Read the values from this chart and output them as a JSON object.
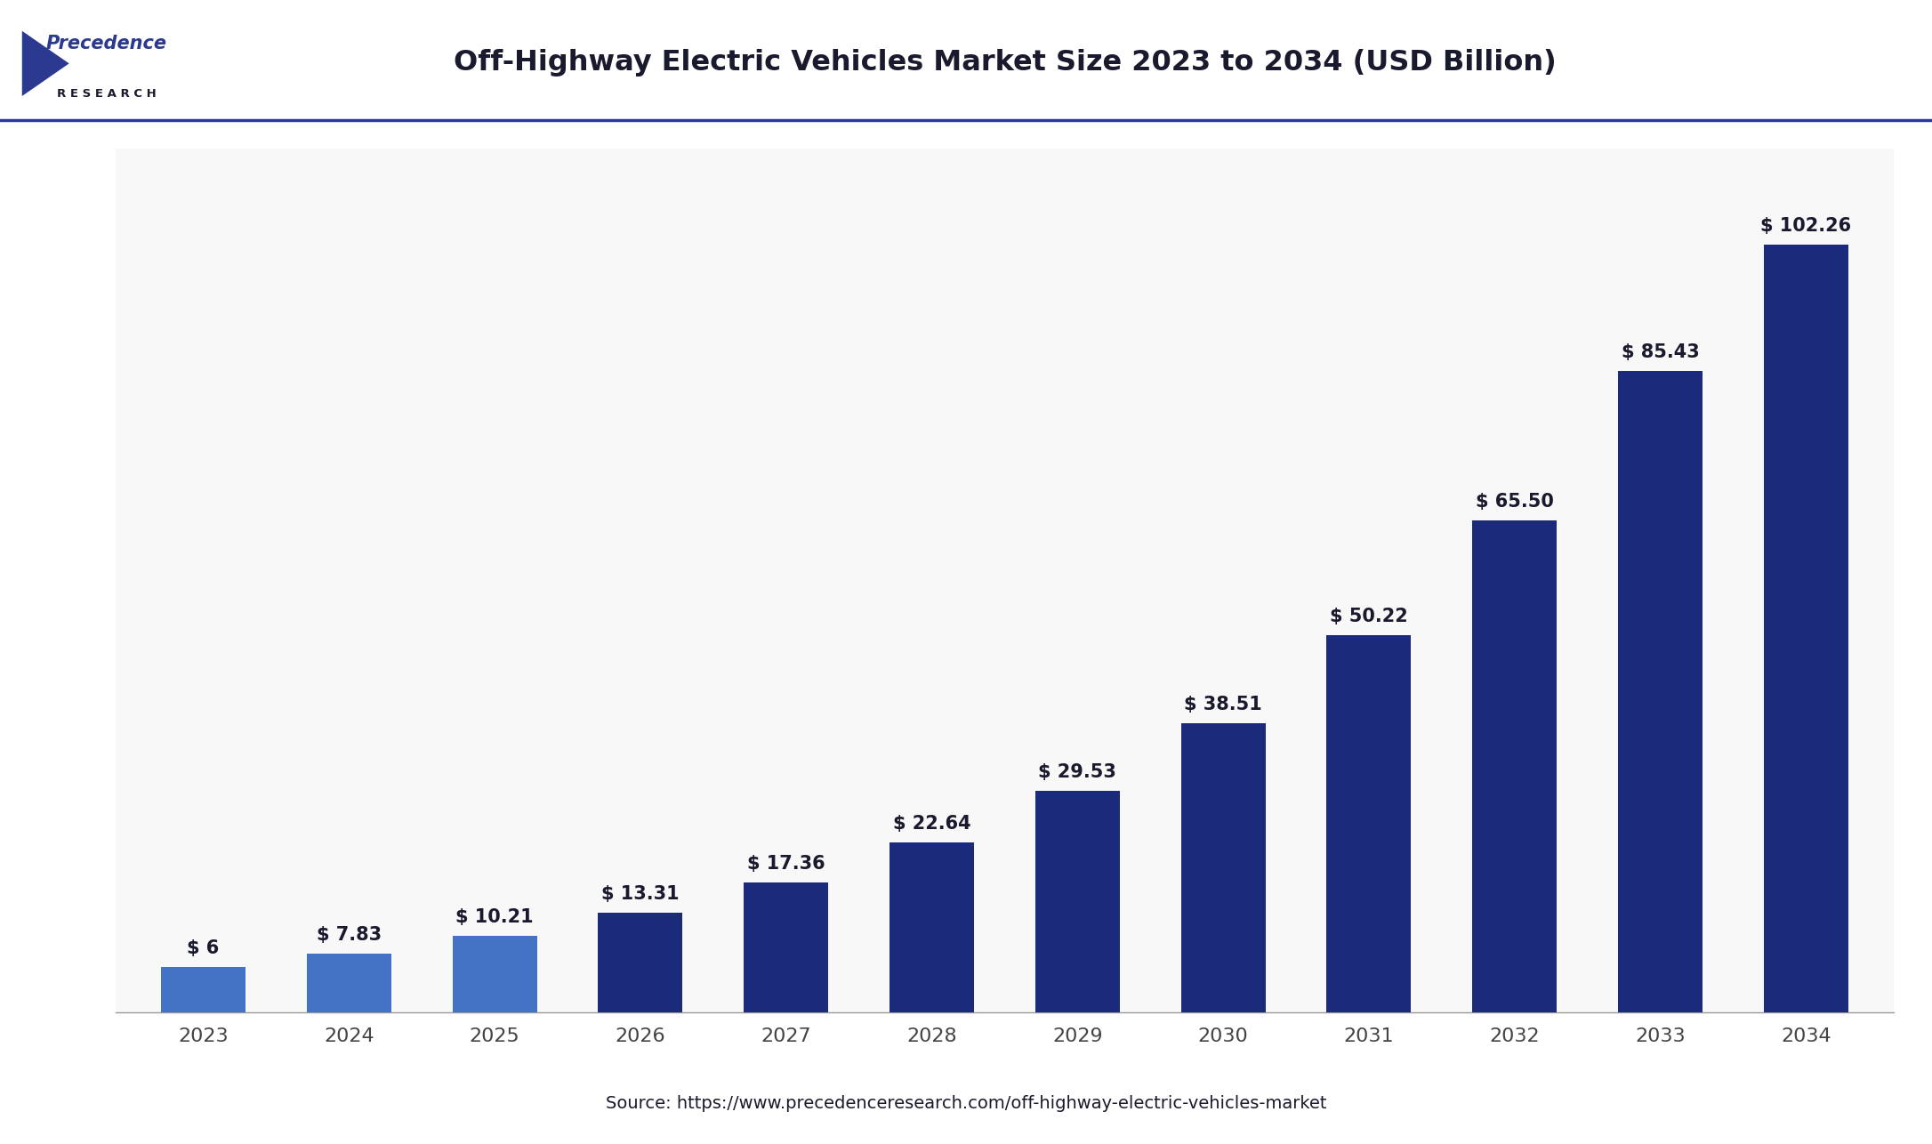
{
  "title": "Off-Highway Electric Vehicles Market Size 2023 to 2034 (USD Billion)",
  "categories": [
    "2023",
    "2024",
    "2025",
    "2026",
    "2027",
    "2028",
    "2029",
    "2030",
    "2031",
    "2032",
    "2033",
    "2034"
  ],
  "values": [
    6,
    7.83,
    10.21,
    13.31,
    17.36,
    22.64,
    29.53,
    38.51,
    50.22,
    65.5,
    85.43,
    102.26
  ],
  "labels": [
    "$ 6",
    "$ 7.83",
    "$ 10.21",
    "$ 13.31",
    "$ 17.36",
    "$ 22.64",
    "$ 29.53",
    "$ 38.51",
    "$ 50.22",
    "$ 65.50",
    "$ 85.43",
    "$ 102.26"
  ],
  "bar_colors": [
    "#4472C4",
    "#4472C4",
    "#4472C4",
    "#1B2A7A",
    "#1B2A7A",
    "#1B2A7A",
    "#1B2A7A",
    "#1B2A7A",
    "#1B2A7A",
    "#1B2A7A",
    "#1B2A7A",
    "#1B2A7A"
  ],
  "background_color": "#FFFFFF",
  "plot_background": "#F8F8F8",
  "title_color": "#1a1a2e",
  "label_color": "#1a1a2e",
  "source_text": "Source: https://www.precedenceresearch.com/off-highway-electric-vehicles-market",
  "ylim": [
    0,
    115
  ],
  "title_fontsize": 23,
  "label_fontsize": 15,
  "tick_fontsize": 16,
  "source_fontsize": 14,
  "bar_width": 0.58,
  "header_line_color": "#2b3990",
  "logo_blue": "#2b3990",
  "logo_dark": "#1a1a2e"
}
